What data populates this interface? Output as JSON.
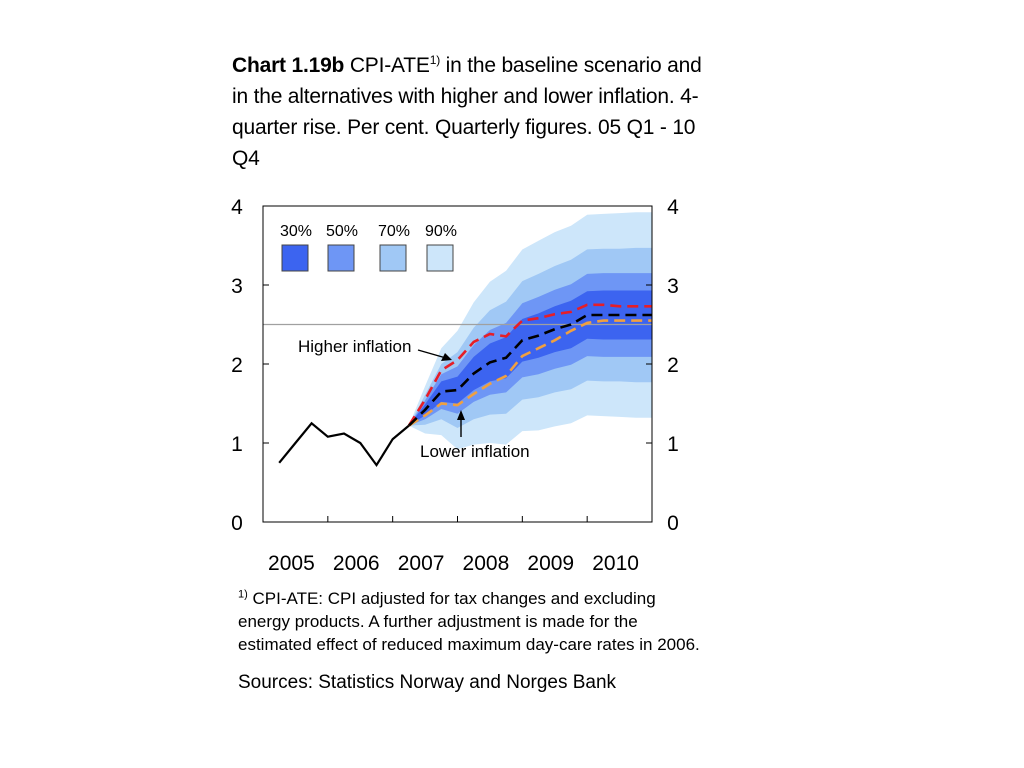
{
  "title": {
    "bold": "Chart 1.19b",
    "part1": " CPI-ATE",
    "sup": "1)",
    "part2": " in the baseline scenario and in the alternatives with higher and lower inflation. 4-quarter rise. Per cent. Quarterly figures. 05 Q1 - 10 Q4"
  },
  "footnote": {
    "sup": "1)",
    "text": " CPI-ATE: CPI adjusted for tax changes and excluding energy products. A further adjustment is made for the estimated effect of reduced maximum day-care rates in 2006."
  },
  "sources": "Sources: Statistics Norway and Norges Bank",
  "chart_data": {
    "type": "line",
    "x_ticks": [
      "2005",
      "2006",
      "2007",
      "2008",
      "2009",
      "2010"
    ],
    "ylim": [
      0,
      4
    ],
    "y_ticks_left": [
      "0",
      "1",
      "2",
      "3",
      "4"
    ],
    "y_ticks_right": [
      "0",
      "1",
      "2",
      "3",
      "4"
    ],
    "reference_line": 2.5,
    "colors": {
      "band30": "#3c64f0",
      "band50": "#6e96f5",
      "band70": "#a0c8f5",
      "band90": "#cde6fa",
      "actual": "#000000",
      "baseline": "#000000",
      "higher": "#e61e28",
      "lower": "#f0a040",
      "reference": "#a0a0a0"
    },
    "legend": {
      "labels": [
        "30%",
        "50%",
        "70%",
        "90%"
      ],
      "colors": [
        "#3c64f0",
        "#6e96f5",
        "#a0c8f5",
        "#cde6fa"
      ]
    },
    "annotations": {
      "higher": "Higher inflation",
      "lower": "Lower inflation"
    },
    "actual": {
      "x": [
        0.25,
        0.5,
        0.75,
        1.0,
        1.25,
        1.5,
        1.75,
        2.0,
        2.25
      ],
      "y": [
        0.75,
        1.0,
        1.25,
        1.08,
        1.12,
        1.0,
        0.72,
        1.05,
        1.22
      ]
    },
    "forecast_x": [
      2.25,
      2.5,
      2.75,
      3.0,
      3.25,
      3.5,
      3.75,
      4.0,
      4.25,
      4.5,
      4.75,
      5.0,
      5.25,
      5.5,
      5.75,
      6.0
    ],
    "baseline": [
      1.22,
      1.42,
      1.65,
      1.67,
      1.88,
      2.02,
      2.08,
      2.3,
      2.36,
      2.44,
      2.5,
      2.62,
      2.62,
      2.62,
      2.62,
      2.62
    ],
    "higher": [
      1.22,
      1.55,
      1.92,
      2.05,
      2.28,
      2.38,
      2.35,
      2.55,
      2.58,
      2.63,
      2.66,
      2.75,
      2.75,
      2.73,
      2.73,
      2.73
    ],
    "lower": [
      1.22,
      1.35,
      1.5,
      1.48,
      1.62,
      1.75,
      1.85,
      2.1,
      2.2,
      2.3,
      2.42,
      2.52,
      2.55,
      2.55,
      2.55,
      2.55
    ],
    "bands": {
      "90": {
        "hw": [
          0.0,
          0.3,
          0.55,
          0.75,
          0.9,
          1.02,
          1.1,
          1.15,
          1.2,
          1.23,
          1.25,
          1.27,
          1.28,
          1.29,
          1.3,
          1.3
        ]
      },
      "70": {
        "hw": [
          0.0,
          0.19,
          0.35,
          0.48,
          0.58,
          0.66,
          0.71,
          0.75,
          0.78,
          0.8,
          0.82,
          0.83,
          0.84,
          0.84,
          0.85,
          0.85
        ]
      },
      "50": {
        "hw": [
          0.0,
          0.12,
          0.22,
          0.3,
          0.36,
          0.41,
          0.44,
          0.47,
          0.49,
          0.5,
          0.51,
          0.52,
          0.53,
          0.53,
          0.53,
          0.53
        ]
      },
      "30": {
        "hw": [
          0.0,
          0.07,
          0.13,
          0.17,
          0.21,
          0.24,
          0.26,
          0.27,
          0.28,
          0.29,
          0.3,
          0.3,
          0.31,
          0.31,
          0.31,
          0.31
        ]
      }
    }
  }
}
